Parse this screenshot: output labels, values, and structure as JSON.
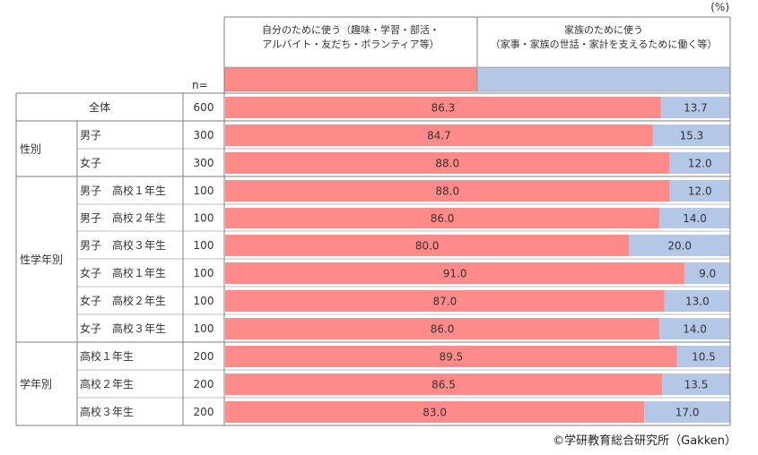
{
  "unit_label": "(%)",
  "n_label": "n=",
  "credit": "©学研教育総合研究所（Gakken）",
  "colors": {
    "self": "#FF8A8A",
    "family": "#B4C7E7",
    "line": "#7F7F7F"
  },
  "chart_data": {
    "type": "bar",
    "stacked": "100%",
    "orientation": "horizontal",
    "series": [
      {
        "name": "自分のために使う（趣味・学習・部活・アルバイト・友だち・ボランティア等）",
        "name_lines": [
          "自分のために使う（趣味・学習・部活・",
          "アルバイト・友だち・ボランティア等）"
        ],
        "color": "#FF8A8A",
        "values": [
          86.3,
          84.7,
          88.0,
          88.0,
          86.0,
          80.0,
          91.0,
          87.0,
          86.0,
          89.5,
          86.5,
          83.0
        ]
      },
      {
        "name": "家族のために使う（家事・家族の世話・家計を支えるために働く等）",
        "name_lines": [
          "家族のために使う",
          "（家事・家族の世話・家計を支えるために働く等）"
        ],
        "color": "#B4C7E7",
        "values": [
          13.7,
          15.3,
          12.0,
          12.0,
          14.0,
          20.0,
          9.0,
          13.0,
          14.0,
          10.5,
          13.5,
          17.0
        ]
      }
    ],
    "groups": [
      {
        "label": "",
        "rows": [
          0
        ]
      },
      {
        "label": "性別",
        "rows": [
          1,
          2
        ]
      },
      {
        "label": "性学年別",
        "rows": [
          3,
          4,
          5,
          6,
          7,
          8
        ]
      },
      {
        "label": "学年別",
        "rows": [
          9,
          10,
          11
        ]
      }
    ],
    "categories": [
      "全体",
      "男子",
      "女子",
      "男子　高校１年生",
      "男子　高校２年生",
      "男子　高校３年生",
      "女子　高校１年生",
      "女子　高校２年生",
      "女子　高校３年生",
      "高校１年生",
      "高校２年生",
      "高校３年生"
    ],
    "n": [
      600,
      300,
      300,
      100,
      100,
      100,
      100,
      100,
      100,
      200,
      200,
      200
    ],
    "display_values": [
      [
        "86.3",
        "84.7",
        "88.0",
        "88.0",
        "86.0",
        "80.0",
        "91.0",
        "87.0",
        "86.0",
        "89.5",
        "86.5",
        "83.0"
      ],
      [
        "13.7",
        "15.3",
        "12.0",
        "12.0",
        "14.0",
        "20.0",
        "9.0",
        "13.0",
        "14.0",
        "10.5",
        "13.5",
        "17.0"
      ]
    ],
    "xlim": [
      0,
      100
    ]
  }
}
